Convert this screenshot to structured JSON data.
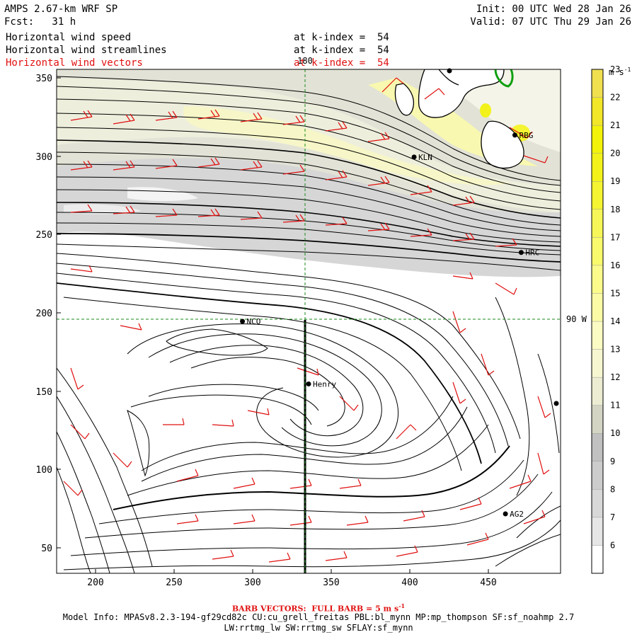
{
  "header": {
    "model": "AMPS 2.67-km WRF SP",
    "fcst": "Fcst:   31 h",
    "init": "Init: 00 UTC Wed 28 Jan 26",
    "valid": "Valid: 07 UTC Thu 29 Jan 26"
  },
  "fields": [
    {
      "name": "Horizontal wind speed",
      "level": "at k-index =  54"
    },
    {
      "name": "Horizontal wind streamlines",
      "level": "at k-index =  54"
    },
    {
      "name": "Horizontal wind vectors",
      "level": "at k-index =  54"
    }
  ],
  "colorbar": {
    "unit": "m s-1",
    "labels": [
      "6",
      "7",
      "8",
      "9",
      "10",
      "11",
      "12",
      "13",
      "14",
      "15",
      "16",
      "17",
      "18",
      "19",
      "20",
      "21",
      "22",
      "23"
    ],
    "colors": [
      "#ffffff",
      "#e6e6e6",
      "#d8d8d8",
      "#cccccc",
      "#c0c0c0",
      "#d4d4c4",
      "#ececd2",
      "#f6f6d0",
      "#fbfbc4",
      "#fbfba6",
      "#fbfb8c",
      "#f9f96c",
      "#f6f658",
      "#f4f432",
      "#f2f21a",
      "#f2f20a",
      "#f2e628",
      "#f0e050"
    ]
  },
  "map": {
    "x_ticks": [
      "200",
      "250",
      "300",
      "350",
      "400",
      "450"
    ],
    "y_ticks": [
      "50",
      "100",
      "150",
      "200",
      "250",
      "300",
      "350"
    ],
    "x_range": [
      175,
      495
    ],
    "y_range": [
      34,
      356
    ],
    "meridian_label": "180",
    "parallel_label": "90 W",
    "stations": [
      {
        "name": "NCO",
        "x": 293,
        "y": 195
      },
      {
        "name": "KLN",
        "x": 402,
        "y": 300
      },
      {
        "name": "RBG",
        "x": 466,
        "y": 314
      },
      {
        "name": "HRC",
        "x": 470,
        "y": 239
      },
      {
        "name": "Henry",
        "x": 335,
        "y": 155
      },
      {
        "name": "AG2",
        "x": 460,
        "y": 72
      }
    ]
  },
  "footer": {
    "barb_note": "BARB VECTORS:  FULL BARB = 5 m s",
    "barb_exp": "-1",
    "model_info": "Model Info: MPASv8.2.3-194-gf29cd82c CU:cu_grell_freitas PBL:bl_mynn MP:mp_thompson SF:sf_noahmp 2.7",
    "model_info2": "LW:rrtmg_lw SW:rrtmg_sw SFLAY:sf_mynn"
  }
}
